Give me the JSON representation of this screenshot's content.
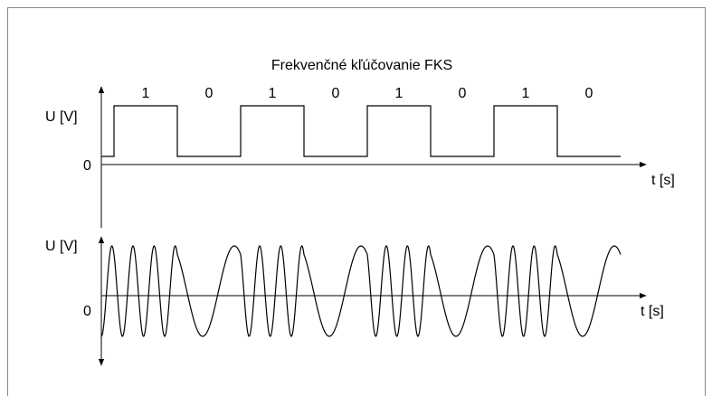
{
  "title": "Frekvenčné kľúčovanie FKS",
  "panels": [
    {
      "y_label": "U [V]",
      "origin": "0",
      "x_label": "t [s]",
      "bits": [
        "1",
        "0",
        "1",
        "0",
        "1",
        "0",
        "1",
        "0"
      ]
    },
    {
      "y_label": "U [V]",
      "origin": "0",
      "x_label": "t [s]"
    }
  ]
}
